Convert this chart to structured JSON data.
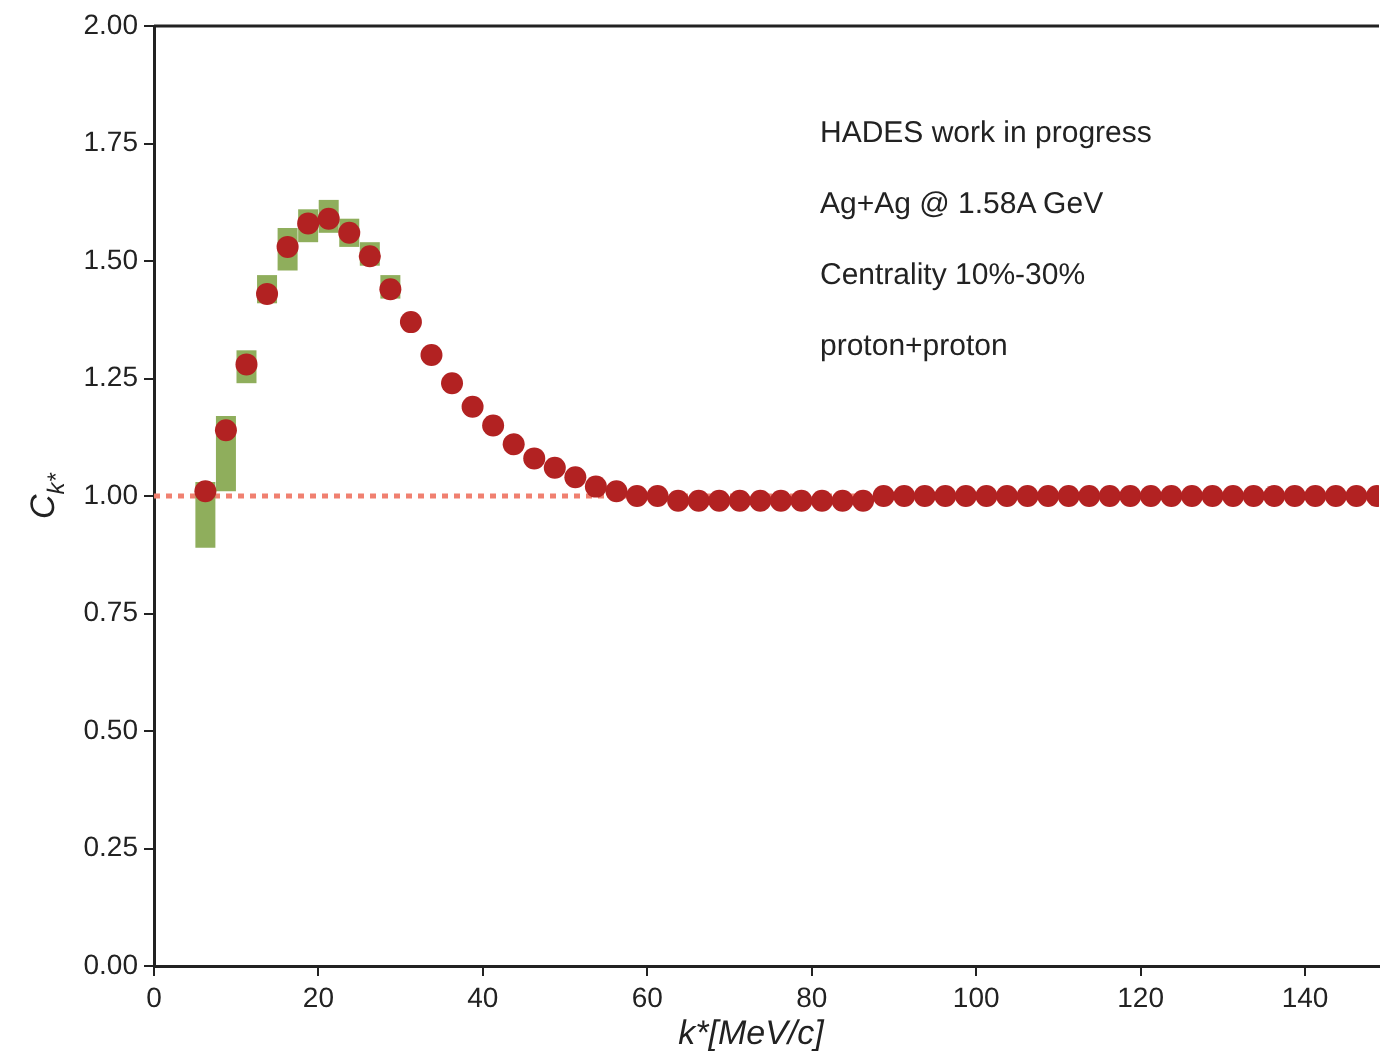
{
  "chart_data": {
    "type": "scatter",
    "xlabel": "k*[MeV/c]",
    "ylabel": "C$_{k*}$",
    "annotations": [
      "HADES work in progress",
      "Ag+Ag @ 1.58A GeV",
      "Centrality 10%-30%",
      "proton+proton"
    ],
    "xlim": [
      0,
      149
    ],
    "xticks": [
      0,
      20,
      40,
      60,
      80,
      100,
      120,
      140
    ],
    "ylim": [
      0,
      2
    ],
    "yticks": [
      {
        "value": 0,
        "label": "0.00"
      },
      {
        "value": 0.25,
        "label": "0.25"
      },
      {
        "value": 0.5,
        "label": "0.50"
      },
      {
        "value": 0.75,
        "label": "0.75"
      },
      {
        "value": 1,
        "label": "1.00"
      },
      {
        "value": 1.25,
        "label": "1.25"
      },
      {
        "value": 1.5,
        "label": "1.50"
      },
      {
        "value": 1.75,
        "label": "1.75"
      },
      {
        "value": 2,
        "label": "2.00"
      }
    ],
    "grid": false,
    "legend": false,
    "marker": "circle",
    "ref_lines": [
      {
        "axis": "y",
        "value": 1,
        "label": null,
        "color": "#f08070",
        "line_style": "dotted"
      }
    ],
    "series": [
      {
        "color": "#b22222",
        "x": [
          6.25,
          8.75,
          11.25,
          13.75,
          16.25,
          18.75,
          21.25,
          23.75,
          26.25,
          28.75,
          31.25,
          33.75,
          36.25,
          38.75,
          41.25,
          43.75,
          46.25,
          48.75,
          51.25,
          53.75,
          56.25,
          58.75,
          61.25,
          63.75,
          66.25,
          68.75,
          71.25,
          73.75,
          76.25,
          78.75,
          81.25,
          83.75,
          86.25,
          88.75,
          91.25,
          93.75,
          96.25,
          98.75,
          101.25,
          103.75,
          106.25,
          108.75,
          111.25,
          113.75,
          116.25,
          118.75,
          121.25,
          123.75,
          126.25,
          128.75,
          131.25,
          133.75,
          136.25,
          138.75,
          141.25,
          143.75,
          146.25,
          148.75
        ],
        "values": [
          1.01,
          1.14,
          1.28,
          1.43,
          1.53,
          1.58,
          1.59,
          1.56,
          1.51,
          1.44,
          1.37,
          1.3,
          1.24,
          1.19,
          1.15,
          1.11,
          1.08,
          1.06,
          1.04,
          1.02,
          1.01,
          1.0,
          1.0,
          0.99,
          0.99,
          0.99,
          0.99,
          0.99,
          0.99,
          0.99,
          0.99,
          0.99,
          0.99,
          1.0,
          1.0,
          1.0,
          1.0,
          1.0,
          1.0,
          1.0,
          1.0,
          1.0,
          1.0,
          1.0,
          1.0,
          1.0,
          1.0,
          1.0,
          1.0,
          1.0,
          1.0,
          1.0,
          1.0,
          1.0,
          1.0,
          1.0,
          1.0,
          1.0
        ],
        "errors": [
          [
            0.89,
            1.03
          ],
          [
            1.01,
            1.17
          ],
          [
            1.24,
            1.31
          ],
          [
            1.41,
            1.47
          ],
          [
            1.48,
            1.57
          ],
          [
            1.54,
            1.61
          ],
          [
            1.56,
            1.63
          ],
          [
            1.53,
            1.59
          ],
          [
            1.49,
            1.54
          ],
          [
            1.42,
            1.47
          ],
          null,
          null,
          null,
          null,
          null,
          null,
          null,
          null,
          null,
          null,
          null,
          null,
          null,
          null,
          null,
          null,
          null,
          null,
          null,
          null,
          null,
          null,
          null,
          null,
          null,
          null,
          null,
          null,
          null,
          null,
          null,
          null,
          null,
          null,
          null,
          null,
          null,
          null,
          null,
          null,
          null,
          null,
          null,
          null,
          null,
          null,
          null,
          null
        ]
      }
    ]
  }
}
